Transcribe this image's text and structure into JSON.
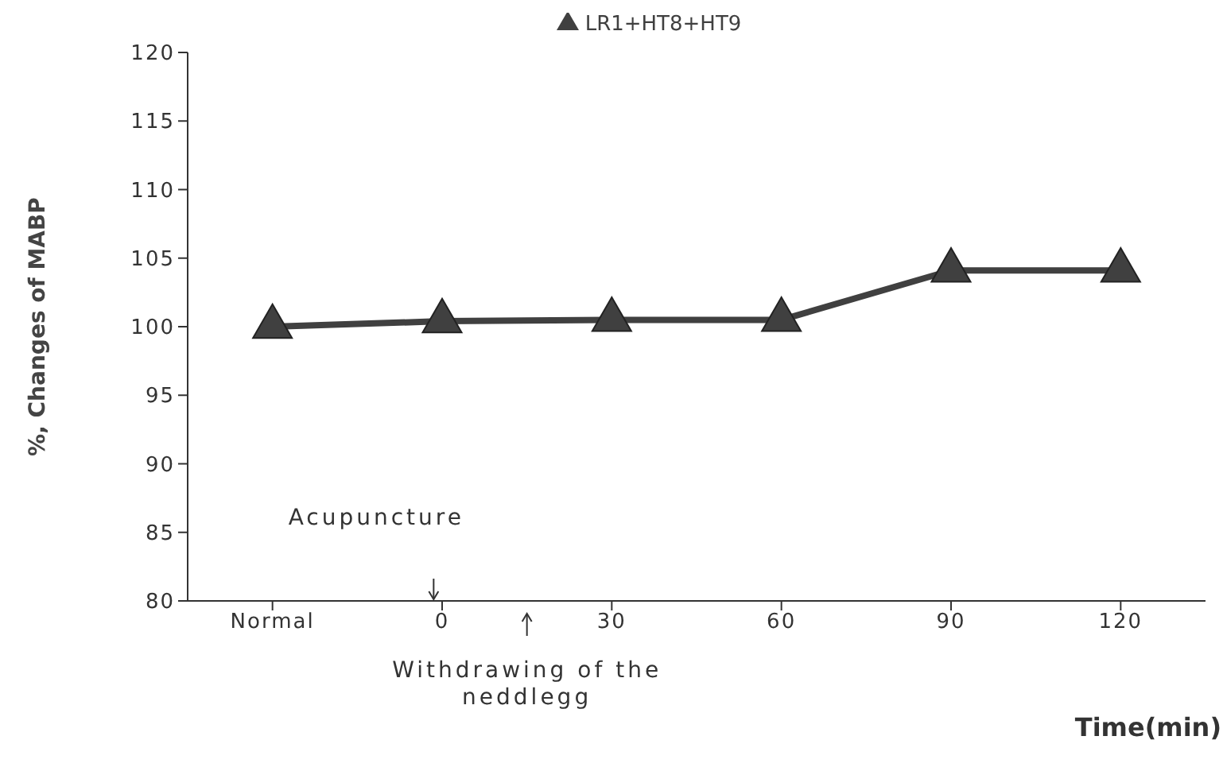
{
  "chart_data": {
    "type": "line",
    "xlabel": "Time(min)",
    "ylabel": "%, Changes of MABP",
    "categories": [
      "Normal",
      "0",
      "30",
      "60",
      "90",
      "120"
    ],
    "series": [
      {
        "name": "LR1+HT8+HT9",
        "color": "#404040",
        "values": [
          100,
          100.4,
          100.5,
          100.5,
          104.1,
          104.1
        ]
      }
    ],
    "ylim": [
      80,
      120
    ],
    "yticks": [
      80,
      85,
      90,
      95,
      100,
      105,
      110,
      115,
      120
    ],
    "grid": false,
    "legend": "top",
    "marker": "triangle",
    "line_style": "solid",
    "annotations": [
      "Acupuncture",
      "Withdrawing of the neddlegg"
    ]
  }
}
